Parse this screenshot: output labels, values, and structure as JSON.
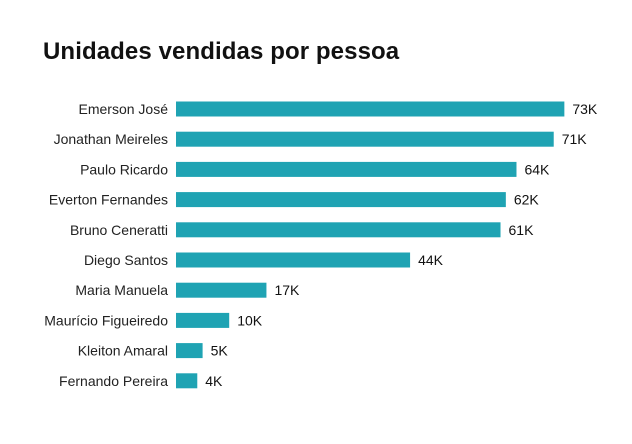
{
  "chart_data": {
    "type": "bar",
    "orientation": "horizontal",
    "title": "Unidades vendidas por pessoa",
    "xlabel": "",
    "ylabel": "",
    "categories": [
      "Emerson José",
      "Jonathan Meireles",
      "Paulo Ricardo",
      "Everton Fernandes",
      "Bruno Ceneratti",
      "Diego Santos",
      "Maria Manuela",
      "Maurício Figueiredo",
      "Kleiton Amaral",
      "Fernando Pereira"
    ],
    "values": [
      73000,
      71000,
      64000,
      62000,
      61000,
      44000,
      17000,
      10000,
      5000,
      4000
    ],
    "data_labels": [
      "73K",
      "71K",
      "64K",
      "62K",
      "61K",
      "44K",
      "17K",
      "10K",
      "5K",
      "4K"
    ],
    "bar_color": "#1fa3b3",
    "grid": false,
    "legend": "none"
  }
}
